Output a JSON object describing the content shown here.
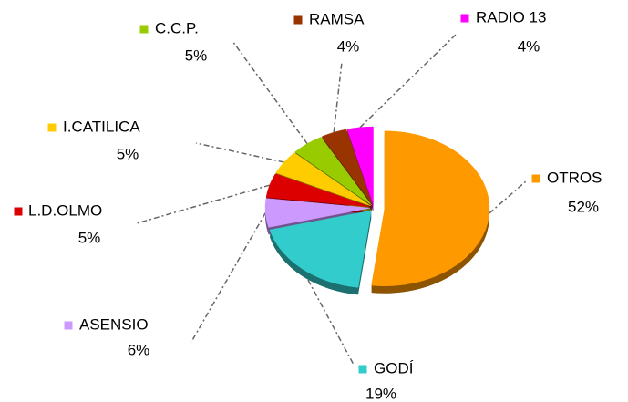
{
  "chart_data": {
    "type": "pie",
    "categories": [
      "OTROS",
      "GODÍ",
      "ASENSIO",
      "L.D.OLMO",
      "I.CATILICA",
      "C.C.P.",
      "RAMSA",
      "RADIO 13"
    ],
    "values": [
      52,
      19,
      6,
      5,
      5,
      5,
      4,
      4
    ],
    "value_labels": [
      "52%",
      "19%",
      "6%",
      "5%",
      "5%",
      "5%",
      "4%",
      "4%"
    ],
    "colors": [
      "#ff9900",
      "#33cccc",
      "#cc99ff",
      "#dd0000",
      "#ffcc00",
      "#99cc00",
      "#993300",
      "#ff00ff"
    ]
  }
}
